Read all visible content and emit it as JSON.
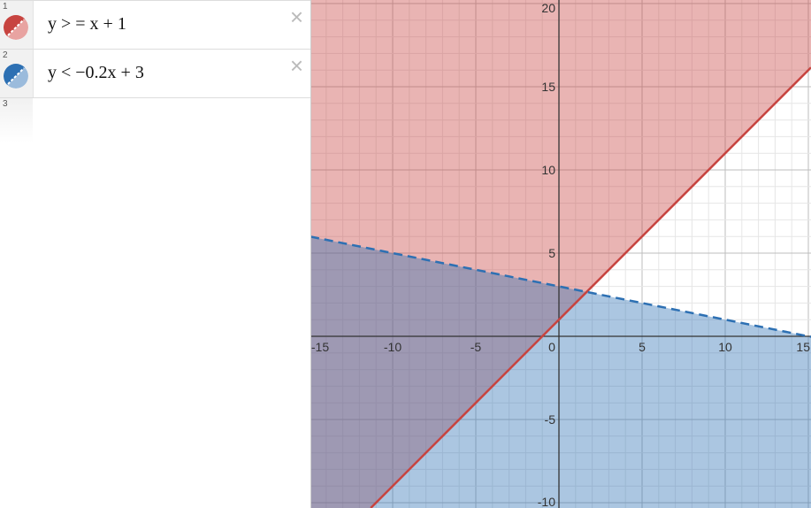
{
  "expressions": [
    {
      "index": "1",
      "latex": "y > = x + 1",
      "color": "#c74440",
      "style": "solid",
      "slope": 1,
      "intercept": 1,
      "relation": ">="
    },
    {
      "index": "2",
      "latex": "y < −0.2x + 3",
      "color": "#2d70b3",
      "style": "dashed",
      "slope": -0.2,
      "intercept": 3,
      "relation": "<"
    },
    {
      "index": "3",
      "latex": ""
    }
  ],
  "icons": {
    "close": "×"
  },
  "graph": {
    "x_range": [
      -15,
      15.05
    ],
    "y_range": [
      -10.3,
      20.2
    ],
    "grid": true,
    "x_ticks": [
      "-15",
      "-10",
      "-5",
      "0",
      "5",
      "10",
      "15"
    ],
    "y_ticks": [
      "20",
      "15",
      "10",
      "5",
      "-5",
      "-10"
    ]
  }
}
